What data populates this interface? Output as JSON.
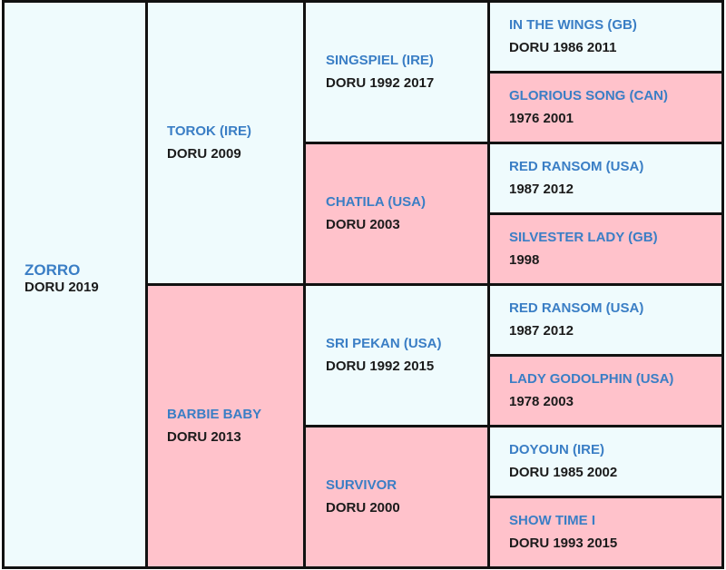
{
  "colors": {
    "male_bg": "#effbfd",
    "female_bg": "#ffc2cb",
    "name_text": "#3a7ec5",
    "info_text": "#1b1b1b",
    "border": "#111111"
  },
  "horse": {
    "name": "ZORRO",
    "info": "DORU 2019"
  },
  "sire": {
    "name": "TOROK (IRE)",
    "info": "DORU 2009"
  },
  "dam": {
    "name": "BARBIE BABY",
    "info": "DORU 2013"
  },
  "sire_sire": {
    "name": "SINGSPIEL (IRE)",
    "info": "DORU 1992 2017"
  },
  "sire_dam": {
    "name": "CHATILA (USA)",
    "info": "DORU 2003"
  },
  "dam_sire": {
    "name": "SRI PEKAN (USA)",
    "info": "DORU 1992 2015"
  },
  "dam_dam": {
    "name": "SURVIVOR",
    "info": "DORU 2000"
  },
  "ggp": [
    {
      "name": "IN THE WINGS (GB)",
      "info": "DORU 1986 2011"
    },
    {
      "name": "GLORIOUS SONG (CAN)",
      "info": "1976 2001"
    },
    {
      "name": "RED RANSOM (USA)",
      "info": "1987 2012"
    },
    {
      "name": "SILVESTER LADY (GB)",
      "info": "1998"
    },
    {
      "name": "RED RANSOM (USA)",
      "info": "1987 2012"
    },
    {
      "name": "LADY GODOLPHIN (USA)",
      "info": "1978 2003"
    },
    {
      "name": "DOYOUN (IRE)",
      "info": "DORU 1985 2002"
    },
    {
      "name": "SHOW TIME I",
      "info": "DORU 1993 2015"
    }
  ]
}
